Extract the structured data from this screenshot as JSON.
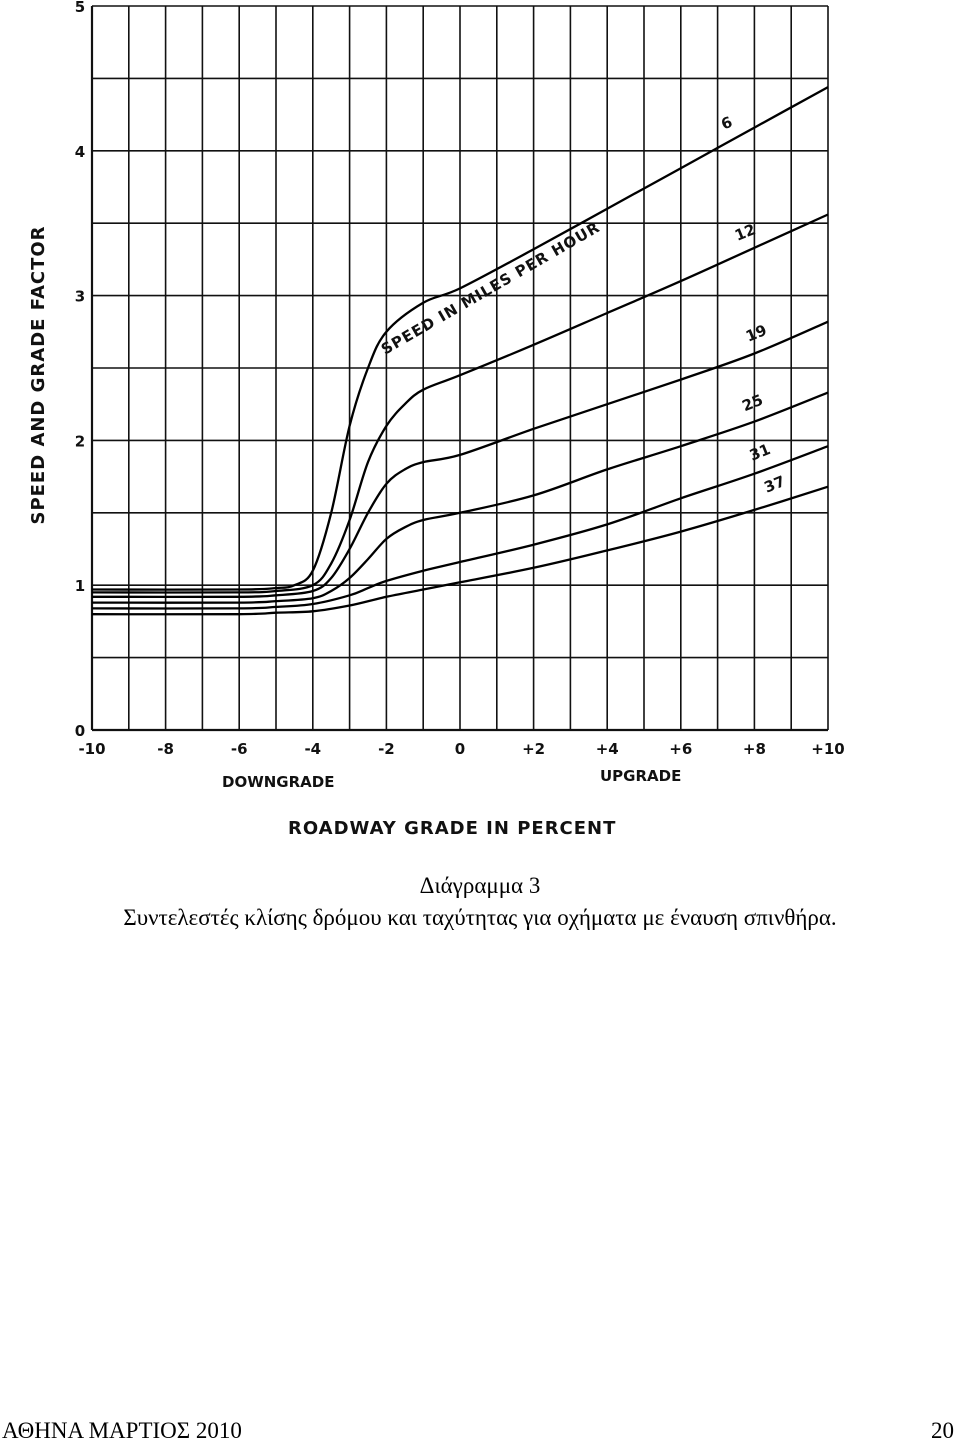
{
  "chart_data": {
    "type": "line",
    "title": "SPEED IN MILES PER HOUR",
    "xlabel": "ROADWAY GRADE IN PERCENT",
    "ylabel": "SPEED AND GRADE FACTOR",
    "x_sublabels": {
      "left": "DOWNGRADE",
      "right": "UPGRADE"
    },
    "xlim": [
      -10,
      10
    ],
    "ylim": [
      0,
      5
    ],
    "x_ticks": [
      -10,
      -8,
      -6,
      -4,
      -2,
      0,
      2,
      4,
      6,
      8,
      10
    ],
    "x_tick_labels": [
      "-10",
      "-8",
      "-6",
      "-4",
      "-2",
      "0",
      "+2",
      "+4",
      "+6",
      "+8",
      "+10"
    ],
    "y_ticks": [
      0,
      1,
      2,
      3,
      4,
      5
    ],
    "y_tick_labels": [
      "0",
      "1",
      "2",
      "3",
      "4",
      "5"
    ],
    "grid": true,
    "series": [
      {
        "name": "6",
        "x": [
          -10,
          -6,
          -5,
          -4.5,
          -4,
          -3.5,
          -3,
          -2.5,
          -2,
          -1,
          0,
          2,
          4,
          6,
          8,
          10
        ],
        "y": [
          0.97,
          0.97,
          0.98,
          1.0,
          1.1,
          1.5,
          2.1,
          2.5,
          2.75,
          2.95,
          3.05,
          3.32,
          3.6,
          3.88,
          4.16,
          4.44
        ]
      },
      {
        "name": "12",
        "x": [
          -10,
          -6,
          -5,
          -4,
          -3.5,
          -3,
          -2.5,
          -2,
          -1.5,
          -1,
          0,
          2,
          4,
          6,
          8,
          10
        ],
        "y": [
          0.95,
          0.95,
          0.96,
          1.0,
          1.15,
          1.45,
          1.85,
          2.1,
          2.25,
          2.35,
          2.45,
          2.66,
          2.88,
          3.1,
          3.33,
          3.56
        ]
      },
      {
        "name": "19",
        "x": [
          -10,
          -6,
          -5,
          -4,
          -3.5,
          -3,
          -2.5,
          -2,
          -1.5,
          -1,
          0,
          2,
          4,
          6,
          8,
          10
        ],
        "y": [
          0.92,
          0.92,
          0.93,
          0.96,
          1.05,
          1.25,
          1.5,
          1.7,
          1.8,
          1.85,
          1.9,
          2.08,
          2.25,
          2.42,
          2.6,
          2.82
        ]
      },
      {
        "name": "25",
        "x": [
          -10,
          -6,
          -5,
          -4,
          -3.5,
          -3,
          -2.5,
          -2,
          -1.5,
          -1,
          0,
          2,
          4,
          6,
          8,
          10
        ],
        "y": [
          0.88,
          0.88,
          0.89,
          0.91,
          0.96,
          1.05,
          1.18,
          1.32,
          1.4,
          1.45,
          1.5,
          1.62,
          1.8,
          1.96,
          2.13,
          2.33
        ]
      },
      {
        "name": "31",
        "x": [
          -10,
          -6,
          -5,
          -4,
          -3,
          -2.5,
          -2,
          -1,
          0,
          2,
          4,
          6,
          8,
          10
        ],
        "y": [
          0.84,
          0.84,
          0.85,
          0.87,
          0.93,
          0.98,
          1.03,
          1.1,
          1.16,
          1.28,
          1.42,
          1.6,
          1.77,
          1.96
        ]
      },
      {
        "name": "37",
        "x": [
          -10,
          -6,
          -5,
          -4,
          -3,
          -2,
          -1,
          0,
          2,
          4,
          6,
          8,
          10
        ],
        "y": [
          0.8,
          0.8,
          0.81,
          0.82,
          0.86,
          0.92,
          0.97,
          1.02,
          1.12,
          1.24,
          1.37,
          1.52,
          1.68
        ]
      }
    ]
  },
  "caption": {
    "title": "Διάγραμμα 3",
    "subtitle": "Συντελεστές κλίσης δρόμου και ταχύτητας για οχήματα με έναυση σπινθήρα."
  },
  "footer": {
    "left": "ΑΘΗΝΑ ΜΑΡΤΙΟΣ 2010",
    "page_number": "20"
  }
}
